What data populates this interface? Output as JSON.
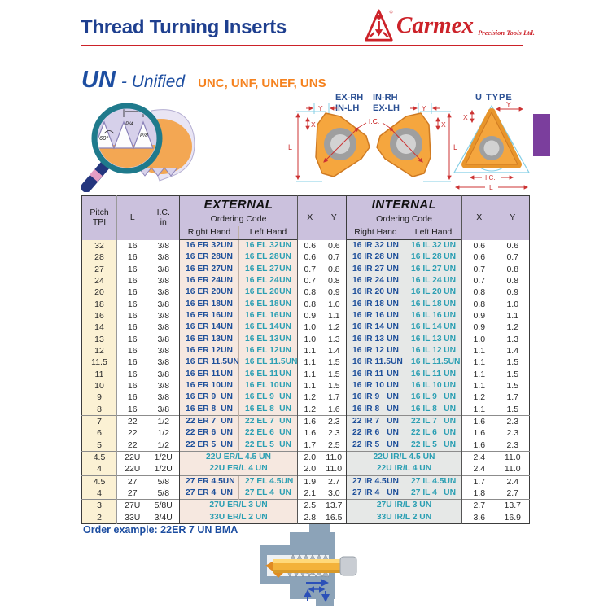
{
  "header": {
    "title": "Thread Turning Inserts",
    "brand": "Carmex",
    "brand_tagline": "Precision Tools Ltd.",
    "registered": "®"
  },
  "section": {
    "series": "UN",
    "series_suffix": "- Unified",
    "subtypes": "UNC, UNF, UNEF, UNS"
  },
  "diagrams": {
    "thread_profile": {
      "p": "P",
      "p_quarter": "P/4",
      "p_eighth": "P/8",
      "angle": "60°"
    },
    "insert_ex_rh": {
      "label_line1": "EX-RH",
      "label_line2": "IN-LH",
      "dims": {
        "l": "L",
        "x": "X",
        "y": "Y",
        "ic": "I.C."
      }
    },
    "insert_in_rh": {
      "label_line1": "IN-RH",
      "label_line2": "EX-LH",
      "dims": {
        "l": "L",
        "x": "X",
        "y": "Y",
        "ic": "I.C."
      }
    },
    "insert_u_type": {
      "label": "U TYPE",
      "dims": {
        "l": "L",
        "x": "X",
        "y": "Y",
        "ic": "I.C."
      }
    }
  },
  "table": {
    "un_suffix": "UN",
    "headers": {
      "pitch": "Pitch",
      "pitch_unit": "TPI",
      "l": "L",
      "ic": "I.C.",
      "ic_unit": "in",
      "external": "EXTERNAL",
      "internal": "INTERNAL",
      "ordering_code": "Ordering Code",
      "right_hand": "Right Hand",
      "left_hand": "Left Hand",
      "x": "X",
      "y": "Y"
    },
    "rows": [
      {
        "pitch": "32",
        "l": "16",
        "ic": "3/8",
        "group": false,
        "merged": false,
        "ext": {
          "rh": "16 ER 32",
          "lh": "16 EL 32",
          "x": "0.6",
          "y": "0.6"
        },
        "int": {
          "rh": "16 IR 32",
          "lh": "16 IL 32",
          "x": "0.6",
          "y": "0.6"
        }
      },
      {
        "pitch": "28",
        "l": "16",
        "ic": "3/8",
        "group": false,
        "merged": false,
        "ext": {
          "rh": "16 ER 28",
          "lh": "16 EL 28",
          "x": "0.6",
          "y": "0.7"
        },
        "int": {
          "rh": "16 IR 28",
          "lh": "16 IL 28",
          "x": "0.6",
          "y": "0.7"
        }
      },
      {
        "pitch": "27",
        "l": "16",
        "ic": "3/8",
        "group": false,
        "merged": false,
        "ext": {
          "rh": "16 ER 27",
          "lh": "16 EL 27",
          "x": "0.7",
          "y": "0.8"
        },
        "int": {
          "rh": "16 IR 27",
          "lh": "16 IL 27",
          "x": "0.7",
          "y": "0.8"
        }
      },
      {
        "pitch": "24",
        "l": "16",
        "ic": "3/8",
        "group": false,
        "merged": false,
        "ext": {
          "rh": "16 ER 24",
          "lh": "16 EL 24",
          "x": "0.7",
          "y": "0.8"
        },
        "int": {
          "rh": "16 IR 24",
          "lh": "16 IL 24",
          "x": "0.7",
          "y": "0.8"
        }
      },
      {
        "pitch": "20",
        "l": "16",
        "ic": "3/8",
        "group": false,
        "merged": false,
        "ext": {
          "rh": "16 ER 20",
          "lh": "16 EL 20",
          "x": "0.8",
          "y": "0.9"
        },
        "int": {
          "rh": "16 IR 20",
          "lh": "16 IL 20",
          "x": "0.8",
          "y": "0.9"
        }
      },
      {
        "pitch": "18",
        "l": "16",
        "ic": "3/8",
        "group": false,
        "merged": false,
        "ext": {
          "rh": "16 ER 18",
          "lh": "16 EL 18",
          "x": "0.8",
          "y": "1.0"
        },
        "int": {
          "rh": "16 IR 18",
          "lh": "16 IL 18",
          "x": "0.8",
          "y": "1.0"
        }
      },
      {
        "pitch": "16",
        "l": "16",
        "ic": "3/8",
        "group": false,
        "merged": false,
        "ext": {
          "rh": "16 ER 16",
          "lh": "16 EL 16",
          "x": "0.9",
          "y": "1.1"
        },
        "int": {
          "rh": "16 IR 16",
          "lh": "16 IL 16",
          "x": "0.9",
          "y": "1.1"
        }
      },
      {
        "pitch": "14",
        "l": "16",
        "ic": "3/8",
        "group": false,
        "merged": false,
        "ext": {
          "rh": "16 ER 14",
          "lh": "16 EL 14",
          "x": "1.0",
          "y": "1.2"
        },
        "int": {
          "rh": "16 IR 14",
          "lh": "16 IL 14",
          "x": "0.9",
          "y": "1.2"
        }
      },
      {
        "pitch": "13",
        "l": "16",
        "ic": "3/8",
        "group": false,
        "merged": false,
        "ext": {
          "rh": "16 ER 13",
          "lh": "16 EL 13",
          "x": "1.0",
          "y": "1.3"
        },
        "int": {
          "rh": "16 IR 13",
          "lh": "16 IL 13",
          "x": "1.0",
          "y": "1.3"
        }
      },
      {
        "pitch": "12",
        "l": "16",
        "ic": "3/8",
        "group": false,
        "merged": false,
        "ext": {
          "rh": "16 ER 12",
          "lh": "16 EL 12",
          "x": "1.1",
          "y": "1.4"
        },
        "int": {
          "rh": "16 IR 12",
          "lh": "16 IL 12",
          "x": "1.1",
          "y": "1.4"
        }
      },
      {
        "pitch": "11.5",
        "l": "16",
        "ic": "3/8",
        "group": false,
        "merged": false,
        "ext": {
          "rh": "16 ER 11.5",
          "lh": "16 EL 11.5",
          "x": "1.1",
          "y": "1.5"
        },
        "int": {
          "rh": "16 IR 11.5",
          "lh": "16 IL 11.5",
          "x": "1.1",
          "y": "1.5"
        }
      },
      {
        "pitch": "11",
        "l": "16",
        "ic": "3/8",
        "group": false,
        "merged": false,
        "ext": {
          "rh": "16 ER 11",
          "lh": "16 EL 11",
          "x": "1.1",
          "y": "1.5"
        },
        "int": {
          "rh": "16 IR 11",
          "lh": "16 IL 11",
          "x": "1.1",
          "y": "1.5"
        }
      },
      {
        "pitch": "10",
        "l": "16",
        "ic": "3/8",
        "group": false,
        "merged": false,
        "ext": {
          "rh": "16 ER 10",
          "lh": "16 EL 10",
          "x": "1.1",
          "y": "1.5"
        },
        "int": {
          "rh": "16 IR 10",
          "lh": "16 IL 10",
          "x": "1.1",
          "y": "1.5"
        }
      },
      {
        "pitch": "9",
        "l": "16",
        "ic": "3/8",
        "group": false,
        "merged": false,
        "ext": {
          "rh": "16 ER 9",
          "lh": "16 EL 9",
          "x": "1.2",
          "y": "1.7"
        },
        "int": {
          "rh": "16 IR 9",
          "lh": "16 IL 9",
          "x": "1.2",
          "y": "1.7"
        }
      },
      {
        "pitch": "8",
        "l": "16",
        "ic": "3/8",
        "group": false,
        "merged": false,
        "ext": {
          "rh": "16 ER 8",
          "lh": "16 EL 8",
          "x": "1.2",
          "y": "1.6"
        },
        "int": {
          "rh": "16 IR 8",
          "lh": "16 IL 8",
          "x": "1.1",
          "y": "1.5"
        }
      },
      {
        "pitch": "7",
        "l": "22",
        "ic": "1/2",
        "group": true,
        "merged": false,
        "ext": {
          "rh": "22 ER 7",
          "lh": "22 EL 7",
          "x": "1.6",
          "y": "2.3"
        },
        "int": {
          "rh": "22 IR 7",
          "lh": "22 IL 7",
          "x": "1.6",
          "y": "2.3"
        }
      },
      {
        "pitch": "6",
        "l": "22",
        "ic": "1/2",
        "group": false,
        "merged": false,
        "ext": {
          "rh": "22 ER 6",
          "lh": "22 EL 6",
          "x": "1.6",
          "y": "2.3"
        },
        "int": {
          "rh": "22 IR 6",
          "lh": "22 IL 6",
          "x": "1.6",
          "y": "2.3"
        }
      },
      {
        "pitch": "5",
        "l": "22",
        "ic": "1/2",
        "group": false,
        "merged": false,
        "ext": {
          "rh": "22 ER 5",
          "lh": "22 EL 5",
          "x": "1.7",
          "y": "2.5"
        },
        "int": {
          "rh": "22 IR 5",
          "lh": "22 IL 5",
          "x": "1.6",
          "y": "2.3"
        }
      },
      {
        "pitch": "4.5",
        "l": "22U",
        "ic": "1/2U",
        "group": true,
        "merged": true,
        "ext": {
          "code": "22U ER/L 4.5 UN",
          "x": "2.0",
          "y": "11.0"
        },
        "int": {
          "code": "22U IR/L 4.5 UN",
          "x": "2.4",
          "y": "11.0"
        }
      },
      {
        "pitch": "4",
        "l": "22U",
        "ic": "1/2U",
        "group": false,
        "merged": true,
        "ext": {
          "code": "22U ER/L 4  UN",
          "x": "2.0",
          "y": "11.0"
        },
        "int": {
          "code": "22U IR/L 4  UN",
          "x": "2.4",
          "y": "11.0"
        }
      },
      {
        "pitch": "4.5",
        "l": "27",
        "ic": "5/8",
        "group": true,
        "merged": false,
        "ext": {
          "rh": "27 ER 4.5",
          "lh": "27 EL 4.5",
          "x": "1.9",
          "y": "2.7"
        },
        "int": {
          "rh": "27 IR 4.5",
          "lh": "27 IL 4.5",
          "x": "1.7",
          "y": "2.4"
        }
      },
      {
        "pitch": "4",
        "l": "27",
        "ic": "5/8",
        "group": false,
        "merged": false,
        "ext": {
          "rh": "27 ER 4",
          "lh": "27 EL 4",
          "x": "2.1",
          "y": "3.0"
        },
        "int": {
          "rh": "27 IR 4",
          "lh": "27 IL 4",
          "x": "1.8",
          "y": "2.7"
        }
      },
      {
        "pitch": "3",
        "l": "27U",
        "ic": "5/8U",
        "group": true,
        "merged": true,
        "ext": {
          "code": "27U ER/L 3  UN",
          "x": "2.5",
          "y": "13.7"
        },
        "int": {
          "code": "27U IR/L 3  UN",
          "x": "2.7",
          "y": "13.7"
        }
      },
      {
        "pitch": "2",
        "l": "33U",
        "ic": "3/4U",
        "group": false,
        "merged": true,
        "ext": {
          "code": "33U ER/L 2  UN",
          "x": "2.8",
          "y": "16.5"
        },
        "int": {
          "code": "33U IR/L 2  UN",
          "x": "3.6",
          "y": "16.9"
        }
      }
    ]
  },
  "footer": {
    "order_example": "Order example: 22ER 7 UN BMA"
  },
  "colors": {
    "title_navy": "#1e3f8f",
    "series_blue": "#1d4ea1",
    "subtype_orange": "#f5821f",
    "brand_red": "#cc2229",
    "header_lavender": "#cbc1dd",
    "pitch_cream": "#fbf1d4",
    "external_pink": "#f6e8e0",
    "internal_gray": "#e6e8e7",
    "code_navy": "#1d4f9a",
    "code_teal": "#2b9fb3",
    "tab_purple": "#7b3e9d",
    "insert_orange": "#f5a63e",
    "dim_red": "#cc3333",
    "construction_blue": "#85cfe6",
    "steel_blue": "#8ca3b8",
    "tool_gold": "#f3b23a",
    "arrow_blue": "#2b50b8"
  }
}
